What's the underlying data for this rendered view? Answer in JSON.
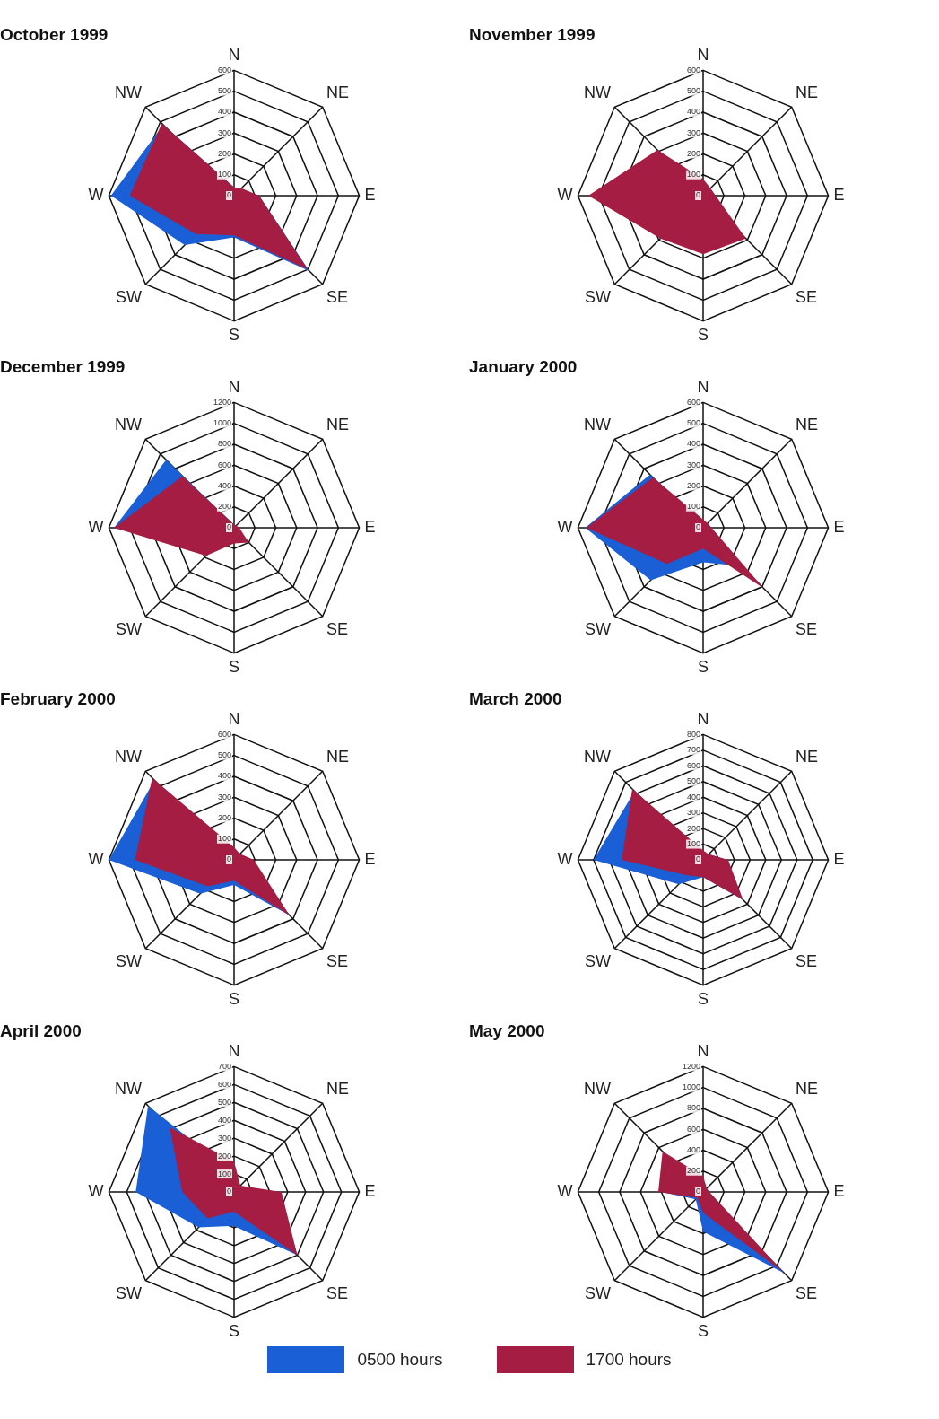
{
  "chart_data": [
    {
      "type": "radar",
      "title": "October 1999",
      "categories": [
        "N",
        "NE",
        "E",
        "SE",
        "S",
        "SW",
        "W",
        "NW"
      ],
      "ylim": [
        0,
        600
      ],
      "yticks": [
        0,
        100,
        200,
        300,
        400,
        500,
        600
      ],
      "grid": true,
      "series": [
        {
          "color": "#1a5fd6",
          "values": [
            40,
            40,
            120,
            510,
            200,
            335,
            590,
            480
          ]
        },
        {
          "color": "#a51d42",
          "values": [
            40,
            50,
            120,
            500,
            190,
            260,
            500,
            490
          ]
        }
      ]
    },
    {
      "type": "radar",
      "title": "November 1999",
      "categories": [
        "N",
        "NE",
        "E",
        "SE",
        "S",
        "SW",
        "W",
        "NW"
      ],
      "ylim": [
        0,
        600
      ],
      "yticks": [
        0,
        100,
        200,
        300,
        400,
        500,
        600
      ],
      "grid": true,
      "series": [
        {
          "color": "#a51d42",
          "values": [
            80,
            50,
            60,
            290,
            280,
            290,
            550,
            310
          ]
        }
      ]
    },
    {
      "type": "radar",
      "title": "December 1999",
      "categories": [
        "N",
        "NE",
        "E",
        "SE",
        "S",
        "SW",
        "W",
        "NW"
      ],
      "ylim": [
        0,
        1200
      ],
      "yticks": [
        0,
        200,
        400,
        600,
        800,
        1000,
        1200
      ],
      "grid": true,
      "series": [
        {
          "color": "#1a5fd6",
          "values": [
            30,
            20,
            40,
            150,
            120,
            350,
            1150,
            920
          ]
        },
        {
          "color": "#a51d42",
          "values": [
            30,
            30,
            50,
            200,
            150,
            380,
            1150,
            700
          ]
        }
      ]
    },
    {
      "type": "radar",
      "title": "January 2000",
      "categories": [
        "N",
        "NE",
        "E",
        "SE",
        "S",
        "SW",
        "W",
        "NW"
      ],
      "ylim": [
        0,
        600
      ],
      "yticks": [
        0,
        100,
        200,
        300,
        400,
        500,
        600
      ],
      "grid": true,
      "series": [
        {
          "color": "#1a5fd6",
          "values": [
            30,
            30,
            40,
            260,
            165,
            355,
            565,
            360
          ]
        },
        {
          "color": "#a51d42",
          "values": [
            40,
            30,
            40,
            410,
            100,
            245,
            560,
            340
          ]
        }
      ]
    },
    {
      "type": "radar",
      "title": "February 2000",
      "categories": [
        "N",
        "NE",
        "E",
        "SE",
        "S",
        "SW",
        "W",
        "NW"
      ],
      "ylim": [
        0,
        600
      ],
      "yticks": [
        0,
        100,
        200,
        300,
        400,
        500,
        600
      ],
      "grid": true,
      "series": [
        {
          "color": "#1a5fd6",
          "values": [
            50,
            40,
            90,
            375,
            120,
            230,
            600,
            540
          ]
        },
        {
          "color": "#a51d42",
          "values": [
            60,
            40,
            95,
            375,
            100,
            180,
            475,
            555
          ]
        }
      ]
    },
    {
      "type": "radar",
      "title": "March 2000",
      "categories": [
        "N",
        "NE",
        "E",
        "SE",
        "S",
        "SW",
        "W",
        "NW"
      ],
      "ylim": [
        0,
        800
      ],
      "yticks": [
        0,
        100,
        200,
        300,
        400,
        500,
        600,
        700,
        800
      ],
      "grid": true,
      "series": [
        {
          "color": "#1a5fd6",
          "values": [
            50,
            50,
            150,
            360,
            110,
            220,
            700,
            620
          ]
        },
        {
          "color": "#a51d42",
          "values": [
            60,
            50,
            160,
            360,
            110,
            140,
            520,
            640
          ]
        }
      ]
    },
    {
      "type": "radar",
      "title": "April 2000",
      "categories": [
        "N",
        "NE",
        "E",
        "SE",
        "S",
        "SW",
        "W",
        "NW"
      ],
      "ylim": [
        0,
        700
      ],
      "yticks": [
        0,
        100,
        200,
        300,
        400,
        500,
        600,
        700
      ],
      "grid": true,
      "series": [
        {
          "color": "#1a5fd6",
          "values": [
            100,
            40,
            250,
            500,
            190,
            280,
            550,
            680
          ]
        },
        {
          "color": "#a51d42",
          "values": [
            170,
            50,
            265,
            500,
            110,
            210,
            290,
            510
          ]
        }
      ]
    },
    {
      "type": "radar",
      "title": "May 2000",
      "categories": [
        "N",
        "NE",
        "E",
        "SE",
        "S",
        "SW",
        "W",
        "NW"
      ],
      "ylim": [
        0,
        1200
      ],
      "yticks": [
        0,
        200,
        400,
        600,
        800,
        1000,
        1200
      ],
      "grid": true,
      "legend": "bottom",
      "series": [
        {
          "name": "0500 hours",
          "color": "#1a5fd6",
          "values": [
            100,
            40,
            40,
            1100,
            380,
            100,
            400,
            500
          ]
        },
        {
          "name": "1700 hours",
          "color": "#a51d42",
          "values": [
            150,
            50,
            60,
            1080,
            200,
            80,
            430,
            550
          ]
        }
      ]
    }
  ]
}
